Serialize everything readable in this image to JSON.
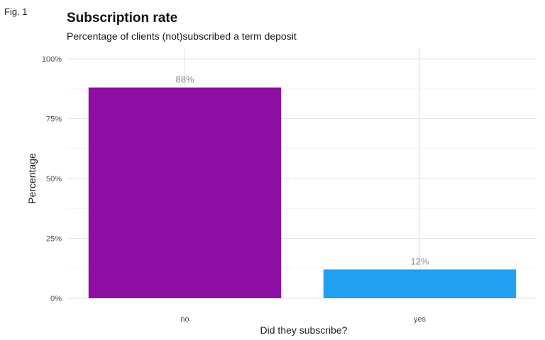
{
  "figure_label": "Fig. 1",
  "chart_data": {
    "type": "bar",
    "title": "Subscription rate",
    "subtitle": "Percentage of clients (not)subscribed a term deposit",
    "xlabel": "Did they subscribe?",
    "ylabel": "Percentage",
    "categories": [
      "no",
      "yes"
    ],
    "values": [
      88,
      12
    ],
    "data_labels": [
      "88%",
      "12%"
    ],
    "colors": [
      "#8e0ea3",
      "#219ff0"
    ],
    "ylim": [
      0,
      100
    ],
    "yticks": [
      0,
      25,
      50,
      75,
      100
    ],
    "ytick_labels": [
      "0%",
      "25%",
      "50%",
      "75%",
      "100%"
    ],
    "grid": true,
    "legend": "none"
  }
}
